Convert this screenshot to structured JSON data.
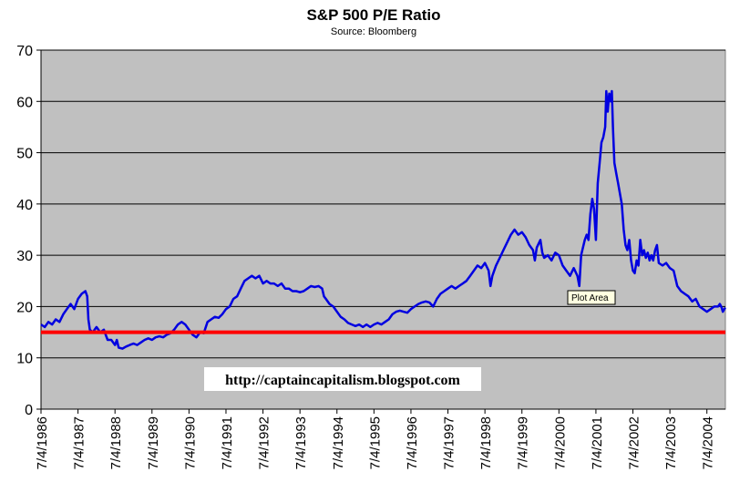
{
  "chart_data": {
    "type": "line",
    "title": "S&P 500 P/E Ratio",
    "subtitle": "Source: Bloomberg",
    "xlabel": "",
    "ylabel": "",
    "ylim": [
      0,
      70
    ],
    "yticks": [
      "0",
      "10",
      "20",
      "30",
      "40",
      "50",
      "60",
      "70"
    ],
    "xlim": [
      1986.5,
      2005.0
    ],
    "xticks": [
      "7/4/1986",
      "7/4/1987",
      "7/4/1988",
      "7/4/1989",
      "7/4/1990",
      "7/4/1991",
      "7/4/1992",
      "7/4/1993",
      "7/4/1994",
      "7/4/1995",
      "7/4/1996",
      "7/4/1997",
      "7/4/1998",
      "7/4/1999",
      "7/4/2000",
      "7/4/2001",
      "7/4/2002",
      "7/4/2003",
      "7/4/2004"
    ],
    "grid": true,
    "legend": "none",
    "background_color": "#c0c0c0",
    "series": [
      {
        "color": "#0000e0",
        "points": [
          [
            1986.5,
            16.5
          ],
          [
            1986.6,
            16.0
          ],
          [
            1986.7,
            17.0
          ],
          [
            1986.8,
            16.5
          ],
          [
            1986.9,
            17.5
          ],
          [
            1987.0,
            17.0
          ],
          [
            1987.1,
            18.5
          ],
          [
            1987.2,
            19.5
          ],
          [
            1987.3,
            20.5
          ],
          [
            1987.4,
            19.5
          ],
          [
            1987.5,
            21.5
          ],
          [
            1987.6,
            22.5
          ],
          [
            1987.7,
            23.0
          ],
          [
            1987.75,
            22.0
          ],
          [
            1987.78,
            17.5
          ],
          [
            1987.82,
            15.5
          ],
          [
            1987.9,
            15.0
          ],
          [
            1988.0,
            16.0
          ],
          [
            1988.1,
            15.0
          ],
          [
            1988.2,
            15.5
          ],
          [
            1988.25,
            14.5
          ],
          [
            1988.3,
            13.5
          ],
          [
            1988.4,
            13.5
          ],
          [
            1988.5,
            12.5
          ],
          [
            1988.55,
            13.5
          ],
          [
            1988.6,
            12.0
          ],
          [
            1988.7,
            11.8
          ],
          [
            1988.8,
            12.2
          ],
          [
            1988.9,
            12.5
          ],
          [
            1989.0,
            12.8
          ],
          [
            1989.1,
            12.5
          ],
          [
            1989.2,
            13.0
          ],
          [
            1989.3,
            13.5
          ],
          [
            1989.4,
            13.8
          ],
          [
            1989.5,
            13.5
          ],
          [
            1989.6,
            14.0
          ],
          [
            1989.7,
            14.2
          ],
          [
            1989.8,
            14.0
          ],
          [
            1989.9,
            14.5
          ],
          [
            1990.0,
            14.8
          ],
          [
            1990.1,
            15.5
          ],
          [
            1990.2,
            16.5
          ],
          [
            1990.3,
            17.0
          ],
          [
            1990.4,
            16.5
          ],
          [
            1990.5,
            15.5
          ],
          [
            1990.6,
            14.5
          ],
          [
            1990.7,
            14.0
          ],
          [
            1990.8,
            15.0
          ],
          [
            1990.9,
            14.8
          ],
          [
            1991.0,
            17.0
          ],
          [
            1991.1,
            17.5
          ],
          [
            1991.2,
            18.0
          ],
          [
            1991.3,
            17.8
          ],
          [
            1991.4,
            18.5
          ],
          [
            1991.5,
            19.5
          ],
          [
            1991.6,
            20.0
          ],
          [
            1991.7,
            21.5
          ],
          [
            1991.8,
            22.0
          ],
          [
            1991.9,
            23.5
          ],
          [
            1992.0,
            25.0
          ],
          [
            1992.1,
            25.5
          ],
          [
            1992.2,
            26.0
          ],
          [
            1992.3,
            25.5
          ],
          [
            1992.4,
            26.0
          ],
          [
            1992.5,
            24.5
          ],
          [
            1992.6,
            25.0
          ],
          [
            1992.7,
            24.5
          ],
          [
            1992.8,
            24.5
          ],
          [
            1992.9,
            24.0
          ],
          [
            1993.0,
            24.5
          ],
          [
            1993.1,
            23.5
          ],
          [
            1993.2,
            23.5
          ],
          [
            1993.3,
            23.0
          ],
          [
            1993.4,
            23.0
          ],
          [
            1993.5,
            22.8
          ],
          [
            1993.6,
            23.0
          ],
          [
            1993.7,
            23.5
          ],
          [
            1993.8,
            24.0
          ],
          [
            1993.9,
            23.8
          ],
          [
            1994.0,
            24.0
          ],
          [
            1994.1,
            23.5
          ],
          [
            1994.15,
            22.0
          ],
          [
            1994.2,
            21.5
          ],
          [
            1994.3,
            20.5
          ],
          [
            1994.4,
            20.0
          ],
          [
            1994.5,
            19.0
          ],
          [
            1994.6,
            18.0
          ],
          [
            1994.7,
            17.5
          ],
          [
            1994.8,
            16.8
          ],
          [
            1994.9,
            16.5
          ],
          [
            1995.0,
            16.2
          ],
          [
            1995.1,
            16.5
          ],
          [
            1995.2,
            16.0
          ],
          [
            1995.3,
            16.5
          ],
          [
            1995.4,
            16.0
          ],
          [
            1995.5,
            16.5
          ],
          [
            1995.6,
            16.8
          ],
          [
            1995.7,
            16.5
          ],
          [
            1995.8,
            17.0
          ],
          [
            1995.9,
            17.5
          ],
          [
            1996.0,
            18.5
          ],
          [
            1996.1,
            19.0
          ],
          [
            1996.2,
            19.2
          ],
          [
            1996.3,
            19.0
          ],
          [
            1996.4,
            18.8
          ],
          [
            1996.5,
            19.5
          ],
          [
            1996.6,
            20.0
          ],
          [
            1996.7,
            20.5
          ],
          [
            1996.8,
            20.8
          ],
          [
            1996.9,
            21.0
          ],
          [
            1997.0,
            20.8
          ],
          [
            1997.1,
            20.0
          ],
          [
            1997.2,
            21.5
          ],
          [
            1997.3,
            22.5
          ],
          [
            1997.4,
            23.0
          ],
          [
            1997.5,
            23.5
          ],
          [
            1997.6,
            24.0
          ],
          [
            1997.7,
            23.5
          ],
          [
            1997.8,
            24.0
          ],
          [
            1997.9,
            24.5
          ],
          [
            1998.0,
            25.0
          ],
          [
            1998.1,
            26.0
          ],
          [
            1998.2,
            27.0
          ],
          [
            1998.3,
            28.0
          ],
          [
            1998.4,
            27.5
          ],
          [
            1998.5,
            28.5
          ],
          [
            1998.6,
            27.0
          ],
          [
            1998.65,
            24.0
          ],
          [
            1998.7,
            26.0
          ],
          [
            1998.8,
            28.0
          ],
          [
            1998.9,
            29.5
          ],
          [
            1999.0,
            31.0
          ],
          [
            1999.1,
            32.5
          ],
          [
            1999.2,
            34.0
          ],
          [
            1999.3,
            35.0
          ],
          [
            1999.4,
            34.0
          ],
          [
            1999.5,
            34.5
          ],
          [
            1999.6,
            33.5
          ],
          [
            1999.7,
            32.0
          ],
          [
            1999.8,
            31.0
          ],
          [
            1999.85,
            29.0
          ],
          [
            1999.9,
            31.5
          ],
          [
            2000.0,
            33.0
          ],
          [
            2000.05,
            30.5
          ],
          [
            2000.1,
            29.5
          ],
          [
            2000.2,
            30.0
          ],
          [
            2000.3,
            29.0
          ],
          [
            2000.4,
            30.5
          ],
          [
            2000.5,
            30.0
          ],
          [
            2000.6,
            28.0
          ],
          [
            2000.7,
            27.0
          ],
          [
            2000.8,
            26.0
          ],
          [
            2000.9,
            27.5
          ],
          [
            2001.0,
            26.0
          ],
          [
            2001.05,
            24.0
          ],
          [
            2001.1,
            30.0
          ],
          [
            2001.2,
            33.0
          ],
          [
            2001.25,
            34.0
          ],
          [
            2001.3,
            33.0
          ],
          [
            2001.35,
            38.0
          ],
          [
            2001.4,
            41.0
          ],
          [
            2001.45,
            39.0
          ],
          [
            2001.5,
            33.0
          ],
          [
            2001.55,
            44.0
          ],
          [
            2001.6,
            48.0
          ],
          [
            2001.65,
            52.0
          ],
          [
            2001.7,
            53.0
          ],
          [
            2001.75,
            55.0
          ],
          [
            2001.78,
            62.0
          ],
          [
            2001.82,
            58.0
          ],
          [
            2001.86,
            61.5
          ],
          [
            2001.9,
            60.0
          ],
          [
            2001.93,
            62.0
          ],
          [
            2001.96,
            55.0
          ],
          [
            2002.0,
            48.0
          ],
          [
            2002.05,
            46.0
          ],
          [
            2002.1,
            44.0
          ],
          [
            2002.15,
            42.0
          ],
          [
            2002.2,
            40.0
          ],
          [
            2002.25,
            35.0
          ],
          [
            2002.3,
            32.0
          ],
          [
            2002.35,
            31.0
          ],
          [
            2002.4,
            33.0
          ],
          [
            2002.45,
            29.0
          ],
          [
            2002.5,
            27.0
          ],
          [
            2002.55,
            26.5
          ],
          [
            2002.6,
            29.0
          ],
          [
            2002.65,
            28.0
          ],
          [
            2002.7,
            33.0
          ],
          [
            2002.75,
            30.0
          ],
          [
            2002.8,
            31.0
          ],
          [
            2002.85,
            29.5
          ],
          [
            2002.9,
            30.5
          ],
          [
            2002.95,
            29.0
          ],
          [
            2003.0,
            30.0
          ],
          [
            2003.05,
            29.0
          ],
          [
            2003.1,
            31.0
          ],
          [
            2003.15,
            32.0
          ],
          [
            2003.2,
            28.5
          ],
          [
            2003.3,
            28.0
          ],
          [
            2003.4,
            28.5
          ],
          [
            2003.5,
            27.5
          ],
          [
            2003.6,
            27.0
          ],
          [
            2003.7,
            24.0
          ],
          [
            2003.8,
            23.0
          ],
          [
            2003.9,
            22.5
          ],
          [
            2004.0,
            22.0
          ],
          [
            2004.1,
            21.0
          ],
          [
            2004.2,
            21.5
          ],
          [
            2004.3,
            20.0
          ],
          [
            2004.4,
            19.5
          ],
          [
            2004.5,
            19.0
          ],
          [
            2004.6,
            19.5
          ],
          [
            2004.7,
            20.0
          ],
          [
            2004.8,
            20.0
          ],
          [
            2004.85,
            20.5
          ],
          [
            2004.9,
            19.8
          ],
          [
            2004.93,
            19.0
          ],
          [
            2004.97,
            19.5
          ],
          [
            2005.0,
            19.8
          ]
        ]
      },
      {
        "color": "#ff0000",
        "points": [
          [
            1986.5,
            15.0
          ],
          [
            2005.0,
            15.0
          ]
        ]
      }
    ],
    "annotations": [
      "Plot Area",
      "http://captaincapitalism.blogspot.com"
    ]
  }
}
